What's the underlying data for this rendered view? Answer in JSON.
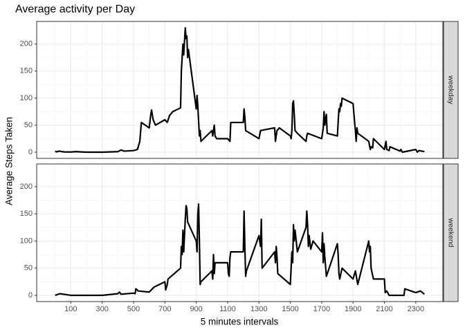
{
  "chart_data": {
    "type": "line",
    "title": "Average activity per Day",
    "x_label": "5 minutes intervals",
    "y_label": "Average Steps Taken",
    "xlim": [
      -117.75,
      2472.75
    ],
    "ylim": [
      -11.5,
      241.9
    ],
    "xticks": [
      100,
      300,
      500,
      700,
      900,
      1100,
      1300,
      1500,
      1700,
      1900,
      2100,
      2300
    ],
    "yticks": [
      0,
      50,
      100,
      150,
      200
    ],
    "grid": true,
    "minor_grid": true,
    "facet": true,
    "series": [
      {
        "name": "weekday",
        "color": "#000000",
        "x": [
          0,
          10,
          25,
          55,
          100,
          130,
          200,
          300,
          400,
          420,
          440,
          500,
          525,
          540,
          550,
          600,
          610,
          615,
          625,
          640,
          700,
          715,
          730,
          750,
          800,
          805,
          815,
          820,
          830,
          835,
          840,
          845,
          850,
          900,
          905,
          910,
          920,
          925,
          930,
          1000,
          1005,
          1015,
          1020,
          1030,
          1100,
          1115,
          1120,
          1200,
          1205,
          1210,
          1215,
          1300,
          1310,
          1400,
          1405,
          1415,
          1430,
          1500,
          1505,
          1510,
          1515,
          1520,
          1525,
          1530,
          1545,
          1600,
          1605,
          1610,
          1700,
          1710,
          1715,
          1720,
          1730,
          1735,
          1800,
          1810,
          1815,
          1820,
          1825,
          1830,
          1900,
          1910,
          1915,
          1920,
          1925,
          1930,
          2000,
          2010,
          2015,
          2025,
          2030,
          2100,
          2110,
          2115,
          2130,
          2135,
          2200,
          2205,
          2215,
          2300,
          2310,
          2320,
          2355
        ],
        "values": [
          2,
          0.5,
          2,
          0.5,
          0.3,
          1,
          0,
          0,
          1,
          4,
          2,
          3,
          5,
          20,
          55,
          45,
          70,
          78,
          60,
          50,
          60,
          55,
          68,
          75,
          82,
          150,
          200,
          180,
          230,
          210,
          215,
          175,
          190,
          80,
          105,
          85,
          30,
          40,
          20,
          40,
          30,
          50,
          30,
          25,
          25,
          20,
          55,
          55,
          80,
          65,
          40,
          25,
          40,
          45,
          20,
          40,
          45,
          30,
          25,
          40,
          90,
          95,
          70,
          40,
          35,
          20,
          30,
          35,
          25,
          45,
          75,
          50,
          70,
          35,
          30,
          80,
          75,
          90,
          85,
          100,
          90,
          55,
          40,
          20,
          45,
          35,
          20,
          5,
          10,
          8,
          25,
          5,
          20,
          5,
          3,
          10,
          2,
          5,
          0,
          5,
          0,
          3,
          1
        ]
      },
      {
        "name": "weekend",
        "color": "#000000",
        "x": [
          0,
          30,
          100,
          200,
          300,
          400,
          410,
          420,
          500,
          510,
          515,
          530,
          600,
          630,
          700,
          705,
          715,
          720,
          800,
          805,
          810,
          815,
          820,
          830,
          835,
          840,
          845,
          900,
          905,
          910,
          915,
          920,
          925,
          930,
          1000,
          1005,
          1010,
          1015,
          1020,
          1100,
          1105,
          1110,
          1115,
          1120,
          1200,
          1205,
          1210,
          1215,
          1220,
          1300,
          1305,
          1310,
          1315,
          1320,
          1400,
          1405,
          1410,
          1415,
          1420,
          1500,
          1505,
          1510,
          1515,
          1520,
          1525,
          1530,
          1545,
          1600,
          1605,
          1610,
          1615,
          1620,
          1630,
          1645,
          1700,
          1705,
          1710,
          1715,
          1720,
          1730,
          1800,
          1805,
          1810,
          1815,
          1830,
          1900,
          1915,
          1930,
          2000,
          2005,
          2010,
          2015,
          2030,
          2100,
          2105,
          2115,
          2130,
          2200,
          2225,
          2230,
          2300,
          2330,
          2355
        ],
        "values": [
          0,
          3,
          0,
          0,
          0,
          3,
          6,
          2,
          4,
          3,
          12,
          8,
          6,
          15,
          25,
          10,
          20,
          30,
          50,
          90,
          75,
          120,
          80,
          140,
          165,
          160,
          135,
          100,
          80,
          150,
          168,
          100,
          20,
          25,
          45,
          30,
          75,
          40,
          60,
          60,
          40,
          35,
          70,
          80,
          80,
          155,
          90,
          35,
          45,
          110,
          100,
          90,
          140,
          50,
          80,
          60,
          90,
          70,
          40,
          20,
          50,
          80,
          60,
          130,
          100,
          120,
          80,
          125,
          155,
          130,
          90,
          110,
          85,
          100,
          80,
          115,
          60,
          95,
          70,
          35,
          95,
          75,
          40,
          30,
          50,
          30,
          45,
          20,
          100,
          80,
          90,
          50,
          30,
          30,
          5,
          8,
          0,
          0,
          0,
          12,
          5,
          8,
          2
        ]
      }
    ]
  }
}
